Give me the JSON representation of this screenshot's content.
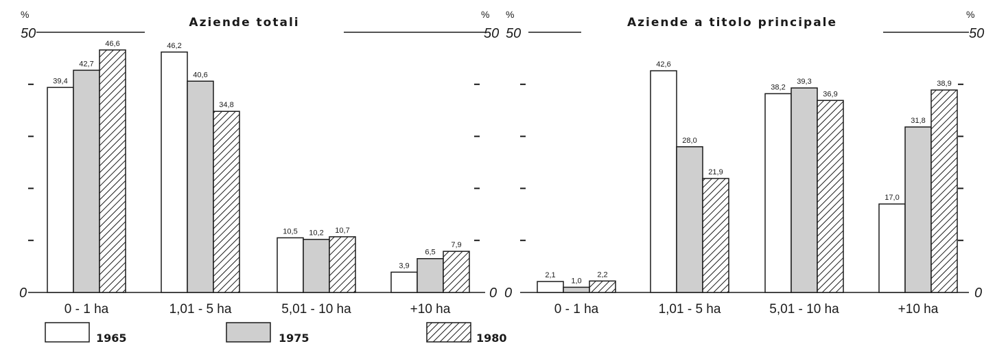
{
  "unit_symbol": "%",
  "legend": [
    {
      "name": "1965",
      "style": "white"
    },
    {
      "name": "1975",
      "style": "gray"
    },
    {
      "name": "1980",
      "style": "hatched"
    }
  ],
  "colors": {
    "ink": "#1a1a1a",
    "gray_fill": "#cfcfcf",
    "white_fill": "#ffffff"
  },
  "chart_data": [
    {
      "type": "bar",
      "title": "Aziende totali",
      "categories": [
        "0 - 1 ha",
        "1,01 - 5 ha",
        "5,01 - 10 ha",
        "+10 ha"
      ],
      "series": [
        {
          "name": "1965",
          "values": [
            39.4,
            46.2,
            10.5,
            3.9
          ],
          "labels": [
            "39,4",
            "46,2",
            "10,5",
            "3,9"
          ]
        },
        {
          "name": "1975",
          "values": [
            42.7,
            40.6,
            10.2,
            6.5
          ],
          "labels": [
            "42,7",
            "40,6",
            "10,2",
            "6,5"
          ]
        },
        {
          "name": "1980",
          "values": [
            46.6,
            34.8,
            10.7,
            7.9
          ],
          "labels": [
            "46,6",
            "34,8",
            "10,7",
            "7,9"
          ]
        }
      ],
      "ylim": [
        0,
        50
      ],
      "y_tick_labels": [
        "0",
        "50"
      ],
      "y_minor_ticks": [
        10,
        20,
        30,
        40
      ],
      "ylabel": "%",
      "grid": false,
      "legend_position": "bottom"
    },
    {
      "type": "bar",
      "title": "Aziende a titolo principale",
      "categories": [
        "0 - 1 ha",
        "1,01 - 5 ha",
        "5,01 - 10 ha",
        "+10 ha"
      ],
      "series": [
        {
          "name": "1965",
          "values": [
            2.1,
            42.6,
            38.2,
            17.0
          ],
          "labels": [
            "2,1",
            "42,6",
            "38,2",
            "17,0"
          ]
        },
        {
          "name": "1975",
          "values": [
            1.0,
            28.0,
            39.3,
            31.8
          ],
          "labels": [
            "1,0",
            "28,0",
            "39,3",
            "31,8"
          ]
        },
        {
          "name": "1980",
          "values": [
            2.2,
            21.9,
            36.9,
            38.9
          ],
          "labels": [
            "2,2",
            "21,9",
            "36,9",
            "38,9"
          ]
        }
      ],
      "ylim": [
        0,
        50
      ],
      "y_tick_labels": [
        "0",
        "50"
      ],
      "y_minor_ticks": [
        10,
        20,
        30,
        40
      ],
      "ylabel": "%",
      "grid": false,
      "legend_position": "bottom"
    }
  ]
}
